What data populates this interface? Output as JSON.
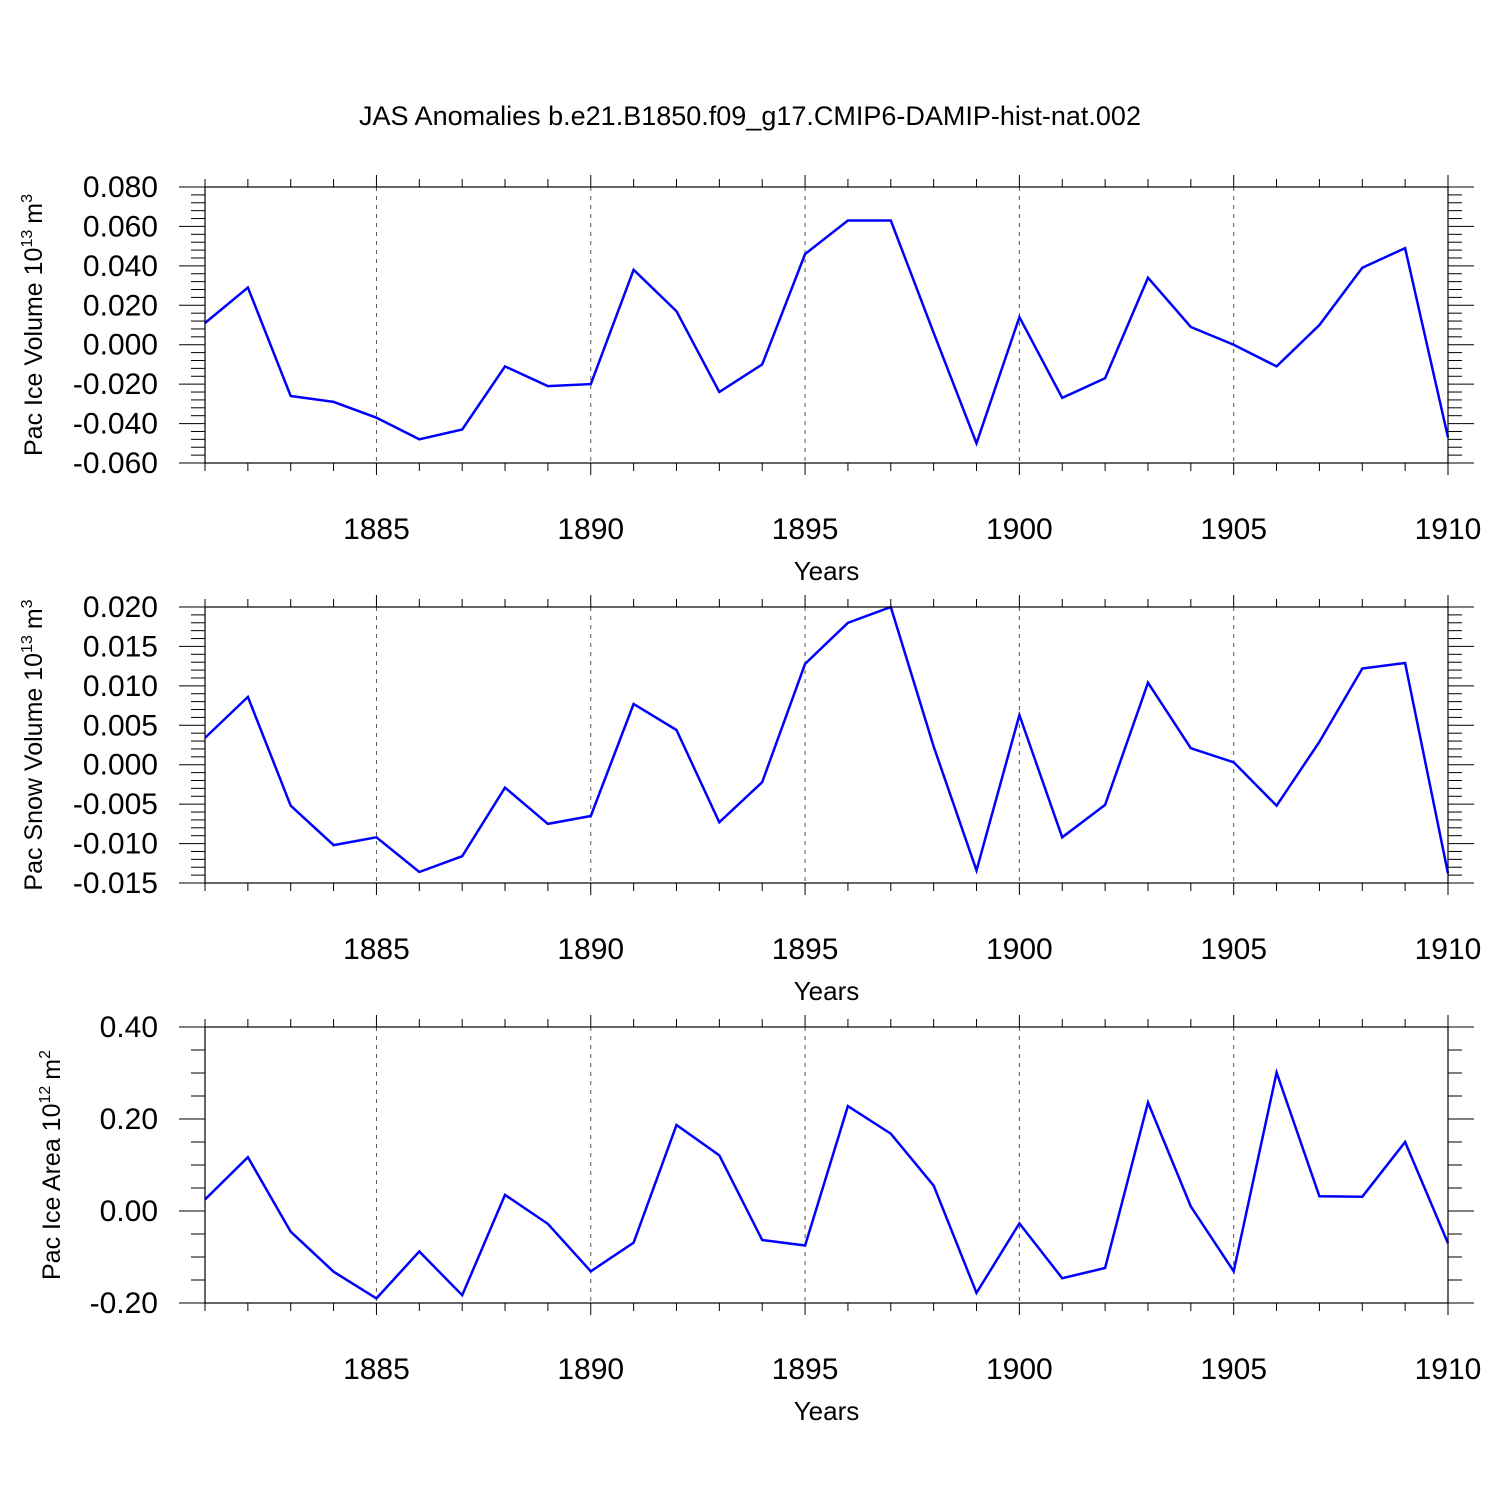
{
  "title": "JAS Anomalies b.e21.B1850.f09_g17.CMIP6-DAMIP-hist-nat.002",
  "line_color": "#0000ff",
  "chart_data": [
    {
      "type": "line",
      "ylabel": "Pac Ice Volume 10",
      "ylabel_exp": "13",
      "ylabel_unit": "m",
      "ylabel_unit_exp": "3",
      "xlabel": "Years",
      "xlim": [
        1881,
        1910
      ],
      "ylim": [
        -0.06,
        0.08
      ],
      "yticks": [
        -0.06,
        -0.04,
        -0.02,
        0.0,
        0.02,
        0.04,
        0.06,
        0.08
      ],
      "ytick_labels": [
        "-0.060",
        "-0.040",
        "-0.020",
        "0.000",
        "0.020",
        "0.040",
        "0.060",
        "0.080"
      ],
      "xticks": [
        1885,
        1890,
        1895,
        1900,
        1905,
        1910
      ],
      "xtick_labels": [
        "1885",
        "1890",
        "1895",
        "1900",
        "1905",
        "1910"
      ],
      "grid": "vertical dashed at major x ticks",
      "x": [
        1881,
        1882,
        1883,
        1884,
        1885,
        1886,
        1887,
        1888,
        1889,
        1890,
        1891,
        1892,
        1893,
        1894,
        1895,
        1896,
        1897,
        1898,
        1899,
        1900,
        1901,
        1902,
        1903,
        1904,
        1905,
        1906,
        1907,
        1908,
        1909,
        1910
      ],
      "series": [
        {
          "values": [
            0.011,
            0.029,
            -0.026,
            -0.029,
            -0.037,
            -0.048,
            -0.043,
            -0.011,
            -0.021,
            -0.02,
            0.038,
            0.017,
            -0.024,
            -0.01,
            0.046,
            0.063,
            0.063,
            0.006,
            -0.05,
            0.014,
            -0.027,
            -0.017,
            0.034,
            0.009,
            0.0,
            -0.011,
            0.01,
            0.039,
            0.049,
            -0.047
          ]
        }
      ]
    },
    {
      "type": "line",
      "ylabel": "Pac Snow Volume 10",
      "ylabel_exp": "13",
      "ylabel_unit": "m",
      "ylabel_unit_exp": "3",
      "xlabel": "Years",
      "xlim": [
        1881,
        1910
      ],
      "ylim": [
        -0.015,
        0.02
      ],
      "yticks": [
        -0.015,
        -0.01,
        -0.005,
        0.0,
        0.005,
        0.01,
        0.015,
        0.02
      ],
      "ytick_labels": [
        "-0.015",
        "-0.010",
        "-0.005",
        "0.000",
        "0.005",
        "0.010",
        "0.015",
        "0.020"
      ],
      "xticks": [
        1885,
        1890,
        1895,
        1900,
        1905,
        1910
      ],
      "xtick_labels": [
        "1885",
        "1890",
        "1895",
        "1900",
        "1905",
        "1910"
      ],
      "grid": "vertical dashed at major x ticks",
      "x": [
        1881,
        1882,
        1883,
        1884,
        1885,
        1886,
        1887,
        1888,
        1889,
        1890,
        1891,
        1892,
        1893,
        1894,
        1895,
        1896,
        1897,
        1898,
        1899,
        1900,
        1901,
        1902,
        1903,
        1904,
        1905,
        1906,
        1907,
        1908,
        1909,
        1910
      ],
      "series": [
        {
          "values": [
            0.0034,
            0.0086,
            -0.0052,
            -0.0102,
            -0.0092,
            -0.0136,
            -0.0116,
            -0.0029,
            -0.0075,
            -0.0065,
            0.0077,
            0.0044,
            -0.0073,
            -0.0022,
            0.0128,
            0.018,
            0.02,
            0.0023,
            -0.0134,
            0.0063,
            -0.0092,
            -0.0051,
            0.0104,
            0.0021,
            0.0003,
            -0.0052,
            0.0029,
            0.0122,
            0.0129,
            -0.0138
          ]
        }
      ]
    },
    {
      "type": "line",
      "ylabel": "Pac Ice Area 10",
      "ylabel_exp": "12",
      "ylabel_unit": "m",
      "ylabel_unit_exp": "2",
      "xlabel": "Years",
      "xlim": [
        1881,
        1910
      ],
      "ylim": [
        -0.2,
        0.4
      ],
      "yticks": [
        -0.2,
        0.0,
        0.2,
        0.4
      ],
      "ytick_labels": [
        "-0.20",
        "0.00",
        "0.20",
        "0.40"
      ],
      "xticks": [
        1885,
        1890,
        1895,
        1900,
        1905,
        1910
      ],
      "xtick_labels": [
        "1885",
        "1890",
        "1895",
        "1900",
        "1905",
        "1910"
      ],
      "grid": "vertical dashed at major x ticks",
      "x": [
        1881,
        1882,
        1883,
        1884,
        1885,
        1886,
        1887,
        1888,
        1889,
        1890,
        1891,
        1892,
        1893,
        1894,
        1895,
        1896,
        1897,
        1898,
        1899,
        1900,
        1901,
        1902,
        1903,
        1904,
        1905,
        1906,
        1907,
        1908,
        1909,
        1910
      ],
      "series": [
        {
          "values": [
            0.025,
            0.117,
            -0.045,
            -0.132,
            -0.19,
            -0.088,
            -0.183,
            0.035,
            -0.028,
            -0.131,
            -0.069,
            0.187,
            0.121,
            -0.063,
            -0.075,
            0.228,
            0.168,
            0.055,
            -0.178,
            -0.027,
            -0.146,
            -0.124,
            0.236,
            0.01,
            -0.131,
            0.301,
            0.032,
            0.031,
            0.15,
            -0.07
          ]
        }
      ]
    }
  ]
}
